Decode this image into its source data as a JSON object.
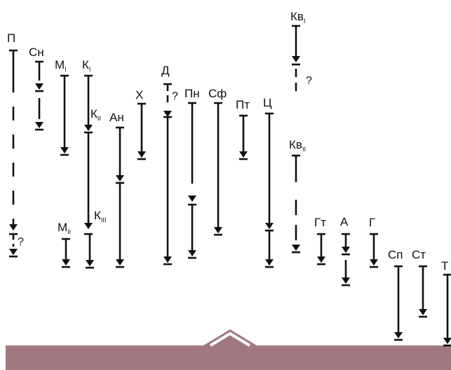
{
  "question_mark": "?",
  "columns": [
    {
      "id": "p",
      "label": "П",
      "sub": ""
    },
    {
      "id": "sn",
      "label": "Сн",
      "sub": ""
    },
    {
      "id": "m1",
      "label": "М",
      "sub": "I"
    },
    {
      "id": "m2",
      "label": "М",
      "sub": "II"
    },
    {
      "id": "k1",
      "label": "К",
      "sub": "I"
    },
    {
      "id": "k2",
      "label": "К",
      "sub": "II"
    },
    {
      "id": "k3",
      "label": "К",
      "sub": "III"
    },
    {
      "id": "an",
      "label": "Ан",
      "sub": ""
    },
    {
      "id": "x",
      "label": "Х",
      "sub": ""
    },
    {
      "id": "d",
      "label": "Д",
      "sub": ""
    },
    {
      "id": "pn",
      "label": "Пн",
      "sub": ""
    },
    {
      "id": "sf",
      "label": "Сф",
      "sub": ""
    },
    {
      "id": "pt",
      "label": "Пт",
      "sub": ""
    },
    {
      "id": "ts",
      "label": "Ц",
      "sub": ""
    },
    {
      "id": "kv1",
      "label": "Кв",
      "sub": "I"
    },
    {
      "id": "kv2",
      "label": "Кв",
      "sub": "II"
    },
    {
      "id": "gt",
      "label": "Гт",
      "sub": ""
    },
    {
      "id": "a",
      "label": "А",
      "sub": ""
    },
    {
      "id": "g",
      "label": "Г",
      "sub": ""
    },
    {
      "id": "sp",
      "label": "Сп",
      "sub": ""
    },
    {
      "id": "st",
      "label": "Ст",
      "sub": ""
    },
    {
      "id": "t",
      "label": "Т",
      "sub": ""
    }
  ],
  "colors": {
    "ink": "#111111",
    "banner": "#a07880",
    "background": "#ffffff"
  }
}
